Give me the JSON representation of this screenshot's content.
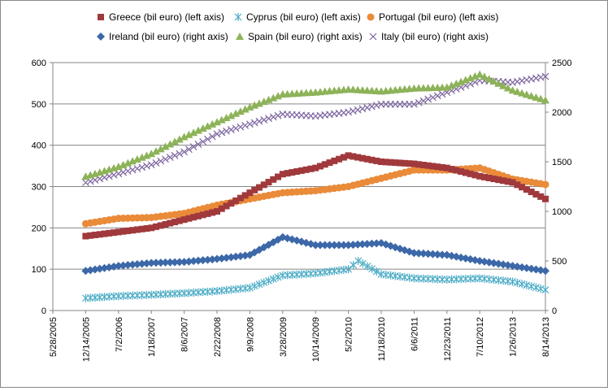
{
  "chart_data": {
    "type": "scatter",
    "x_tick_labels": [
      "5/28/2005",
      "12/14/2005",
      "7/2/2006",
      "1/18/2007",
      "8/6/2007",
      "2/22/2008",
      "9/9/2008",
      "3/28/2009",
      "10/14/2009",
      "5/2/2010",
      "11/18/2010",
      "6/6/2011",
      "12/23/2011",
      "7/10/2012",
      "1/26/2013",
      "8/14/2013"
    ],
    "y_left": {
      "min": 0,
      "max": 600,
      "ticks": [
        0,
        100,
        200,
        300,
        400,
        500,
        600
      ]
    },
    "y_right": {
      "min": 0,
      "max": 2500,
      "ticks": [
        0,
        500,
        1000,
        1500,
        2000,
        2500
      ]
    },
    "grid": "horizontal",
    "legend_position": "top",
    "series": [
      {
        "name": "Greece (bil euro) (left axis)",
        "axis": "left",
        "marker": "square",
        "color": "#A0393C",
        "points": [
          [
            "2005-12-14",
            180
          ],
          [
            "2006-07-02",
            190
          ],
          [
            "2007-01-18",
            200
          ],
          [
            "2007-08-06",
            220
          ],
          [
            "2008-02-22",
            240
          ],
          [
            "2008-09-09",
            285
          ],
          [
            "2009-03-28",
            330
          ],
          [
            "2009-10-14",
            345
          ],
          [
            "2010-05-02",
            375
          ],
          [
            "2010-11-18",
            360
          ],
          [
            "2011-06-06",
            355
          ],
          [
            "2011-12-23",
            345
          ],
          [
            "2012-07-10",
            325
          ],
          [
            "2013-01-26",
            310
          ],
          [
            "2013-08-14",
            270
          ]
        ]
      },
      {
        "name": "Cyprus (bil euro) (left axis)",
        "axis": "left",
        "marker": "asterisk",
        "color": "#4BACC6",
        "points": [
          [
            "2005-12-14",
            30
          ],
          [
            "2006-07-02",
            35
          ],
          [
            "2007-01-18",
            38
          ],
          [
            "2007-08-06",
            42
          ],
          [
            "2008-02-22",
            47
          ],
          [
            "2008-09-09",
            55
          ],
          [
            "2009-03-28",
            85
          ],
          [
            "2009-10-14",
            90
          ],
          [
            "2010-05-02",
            100
          ],
          [
            "2010-07-01",
            120
          ],
          [
            "2010-11-18",
            88
          ],
          [
            "2011-06-06",
            78
          ],
          [
            "2011-12-23",
            75
          ],
          [
            "2012-07-10",
            78
          ],
          [
            "2013-01-26",
            70
          ],
          [
            "2013-08-14",
            50
          ]
        ]
      },
      {
        "name": "Portugal (bil euro) (left axis)",
        "axis": "left",
        "marker": "circle",
        "color": "#E98B39",
        "points": [
          [
            "2005-12-14",
            210
          ],
          [
            "2006-07-02",
            223
          ],
          [
            "2007-01-18",
            225
          ],
          [
            "2007-08-06",
            235
          ],
          [
            "2008-02-22",
            255
          ],
          [
            "2008-09-09",
            270
          ],
          [
            "2009-03-28",
            285
          ],
          [
            "2009-10-14",
            290
          ],
          [
            "2010-05-02",
            300
          ],
          [
            "2010-11-18",
            320
          ],
          [
            "2011-06-06",
            340
          ],
          [
            "2011-12-23",
            340
          ],
          [
            "2012-07-10",
            345
          ],
          [
            "2013-01-26",
            318
          ],
          [
            "2013-08-14",
            305
          ]
        ]
      },
      {
        "name": "Ireland (bil euro) (right axis)",
        "axis": "right",
        "marker": "diamond",
        "color": "#3C68A8",
        "points": [
          [
            "2005-12-14",
            400
          ],
          [
            "2006-07-02",
            450
          ],
          [
            "2007-01-18",
            480
          ],
          [
            "2007-08-06",
            490
          ],
          [
            "2008-02-22",
            520
          ],
          [
            "2008-09-09",
            560
          ],
          [
            "2009-03-28",
            740
          ],
          [
            "2009-10-14",
            660
          ],
          [
            "2010-05-02",
            660
          ],
          [
            "2010-11-18",
            680
          ],
          [
            "2011-06-06",
            580
          ],
          [
            "2011-12-23",
            560
          ],
          [
            "2012-07-10",
            500
          ],
          [
            "2013-01-26",
            450
          ],
          [
            "2013-08-14",
            400
          ]
        ]
      },
      {
        "name": "Spain (bil euro) (right axis)",
        "axis": "right",
        "marker": "triangle",
        "color": "#8DB359",
        "points": [
          [
            "2005-12-14",
            1350
          ],
          [
            "2006-07-02",
            1450
          ],
          [
            "2007-01-18",
            1580
          ],
          [
            "2007-08-06",
            1750
          ],
          [
            "2008-02-22",
            1900
          ],
          [
            "2008-09-09",
            2050
          ],
          [
            "2009-03-28",
            2180
          ],
          [
            "2009-10-14",
            2200
          ],
          [
            "2010-05-02",
            2230
          ],
          [
            "2010-11-18",
            2210
          ],
          [
            "2011-06-06",
            2240
          ],
          [
            "2011-12-23",
            2250
          ],
          [
            "2012-07-10",
            2380
          ],
          [
            "2013-01-26",
            2220
          ],
          [
            "2013-08-14",
            2120
          ]
        ]
      },
      {
        "name": "Italy (bil euro) (right axis)",
        "axis": "right",
        "marker": "x",
        "color": "#7D65A0",
        "points": [
          [
            "2005-12-14",
            1290
          ],
          [
            "2006-07-02",
            1380
          ],
          [
            "2007-01-18",
            1470
          ],
          [
            "2007-08-06",
            1600
          ],
          [
            "2008-02-22",
            1780
          ],
          [
            "2008-09-09",
            1880
          ],
          [
            "2009-03-28",
            1980
          ],
          [
            "2009-10-14",
            1960
          ],
          [
            "2010-05-02",
            2000
          ],
          [
            "2010-11-18",
            2080
          ],
          [
            "2011-06-06",
            2080
          ],
          [
            "2011-12-23",
            2200
          ],
          [
            "2012-07-10",
            2320
          ],
          [
            "2013-01-26",
            2300
          ],
          [
            "2013-08-14",
            2360
          ]
        ]
      }
    ]
  }
}
